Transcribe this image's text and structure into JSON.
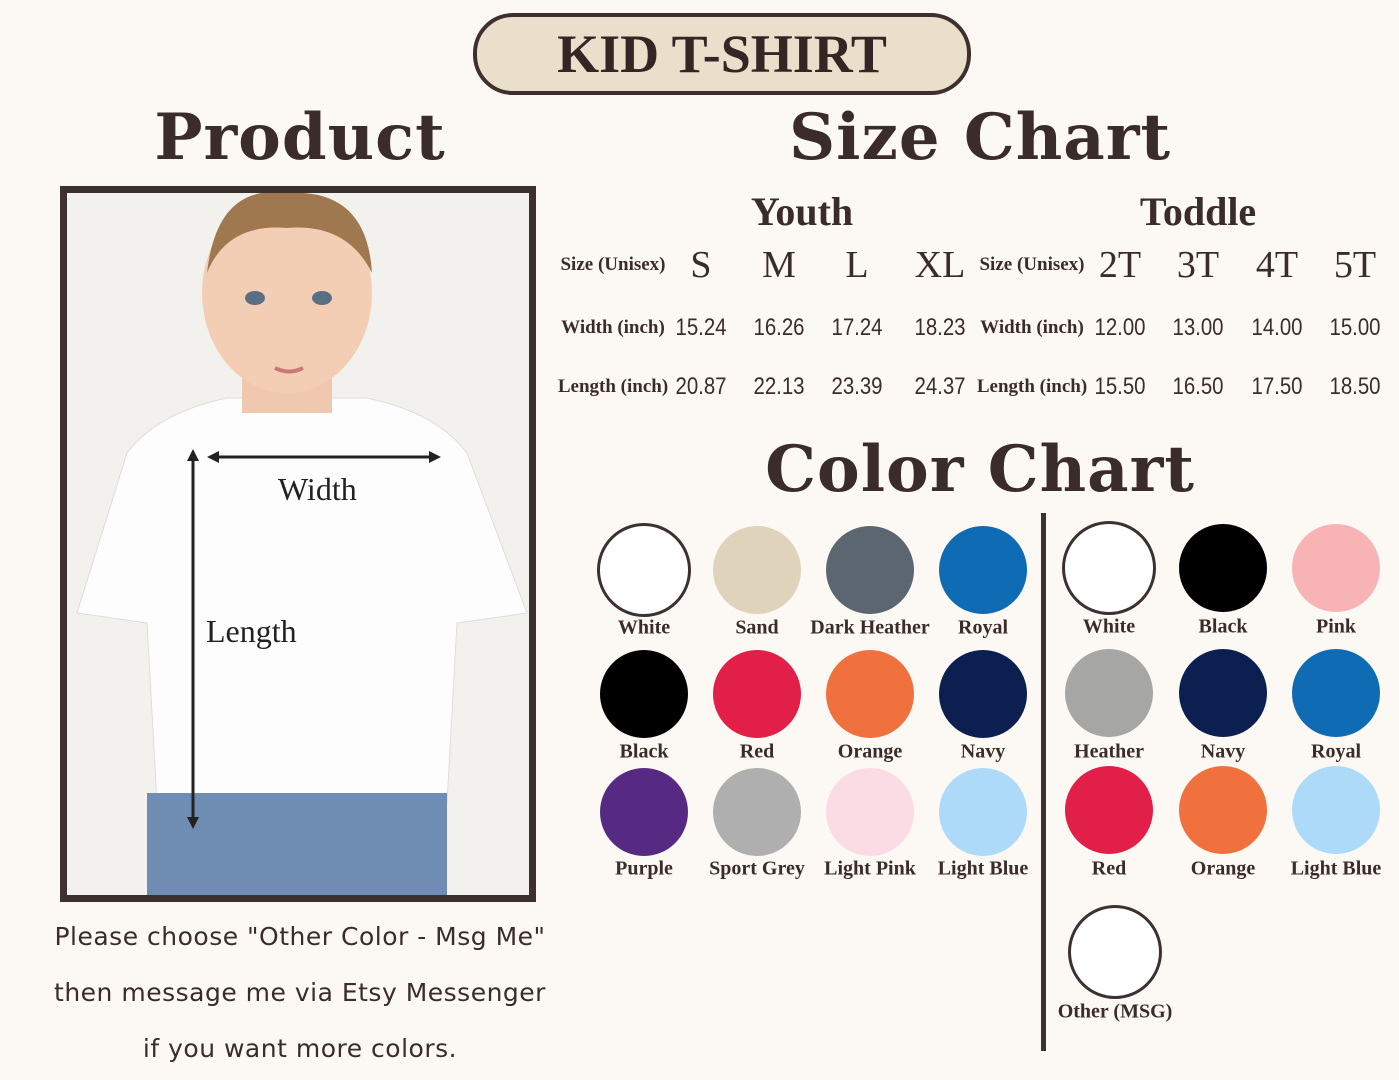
{
  "title": "KID T-SHIRT",
  "product_heading": "Product",
  "size_chart_heading": "Size Chart",
  "color_chart_heading": "Color Chart",
  "product": {
    "width_label": "Width",
    "length_label": "Length"
  },
  "caption": [
    "Please choose \"Other Color - Msg Me\"",
    "then message me via Etsy Messenger",
    "if you want more colors."
  ],
  "size_chart": {
    "youth": {
      "heading": "Youth",
      "size_label": "Size (Unisex)",
      "width_label": "Width (inch)",
      "length_label": "Length (inch)",
      "sizes": [
        "S",
        "M",
        "L",
        "XL"
      ],
      "width": [
        "15.24",
        "16.26",
        "17.24",
        "18.23"
      ],
      "length": [
        "20.87",
        "22.13",
        "23.39",
        "24.37"
      ]
    },
    "toddler": {
      "heading": "Toddle",
      "size_label": "Size (Unisex)",
      "width_label": "Width (inch)",
      "length_label": "Length (inch)",
      "sizes": [
        "2T",
        "3T",
        "4T",
        "5T"
      ],
      "width": [
        "12.00",
        "13.00",
        "14.00",
        "15.00"
      ],
      "length": [
        "15.50",
        "16.50",
        "17.50",
        "18.50"
      ]
    }
  },
  "colors_youth": [
    {
      "name": "White",
      "hex": "#ffffff",
      "outline": true
    },
    {
      "name": "Sand",
      "hex": "#e0d3bb"
    },
    {
      "name": "Dark Heather",
      "hex": "#5c6670"
    },
    {
      "name": "Royal",
      "hex": "#0f6bb4"
    },
    {
      "name": "Black",
      "hex": "#000000"
    },
    {
      "name": "Red",
      "hex": "#e11f48"
    },
    {
      "name": "Orange",
      "hex": "#f0713d"
    },
    {
      "name": "Navy",
      "hex": "#0b2050"
    },
    {
      "name": "Purple",
      "hex": "#562a83"
    },
    {
      "name": "Sport Grey",
      "hex": "#afafaf"
    },
    {
      "name": "Light Pink",
      "hex": "#fbdbe4"
    },
    {
      "name": "Light Blue",
      "hex": "#acdaf8"
    }
  ],
  "colors_toddler": [
    {
      "name": "White",
      "hex": "#ffffff",
      "outline": true
    },
    {
      "name": "Black",
      "hex": "#000000"
    },
    {
      "name": "Pink",
      "hex": "#f8b4b5"
    },
    {
      "name": "Heather",
      "hex": "#a6a6a4"
    },
    {
      "name": "Navy",
      "hex": "#0b2050"
    },
    {
      "name": "Royal",
      "hex": "#0f6bb4"
    },
    {
      "name": "Red",
      "hex": "#e11f48"
    },
    {
      "name": "Orange",
      "hex": "#f0713d"
    },
    {
      "name": "Light Blue",
      "hex": "#acdaf8"
    },
    {
      "name": "Other (MSG)",
      "hex": "#ffffff",
      "outline": true
    }
  ]
}
